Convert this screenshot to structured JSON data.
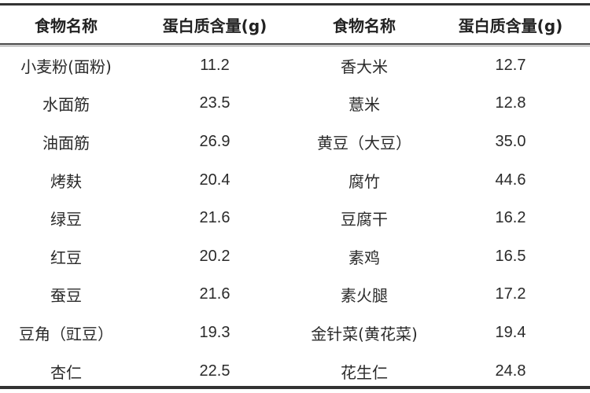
{
  "headers": [
    "食物名称",
    "蛋白质含量(g)",
    "食物名称",
    "蛋白质含量(g)"
  ],
  "rows": [
    [
      "小麦粉(面粉)",
      "11.2",
      "香大米",
      "12.7"
    ],
    [
      "水面筋",
      "23.5",
      "薏米",
      "12.8"
    ],
    [
      "油面筋",
      "26.9",
      "黄豆（大豆）",
      "35.0"
    ],
    [
      "烤麸",
      "20.4",
      "腐竹",
      "44.6"
    ],
    [
      "绿豆",
      "21.6",
      "豆腐干",
      "16.2"
    ],
    [
      "红豆",
      "20.2",
      "素鸡",
      "16.5"
    ],
    [
      "蚕豆",
      "21.6",
      "素火腿",
      "17.2"
    ],
    [
      "豆角（豇豆）",
      "19.3",
      "金针菜(黄花菜)",
      "19.4"
    ],
    [
      "杏仁",
      "22.5",
      "花生仁",
      "24.8"
    ]
  ]
}
